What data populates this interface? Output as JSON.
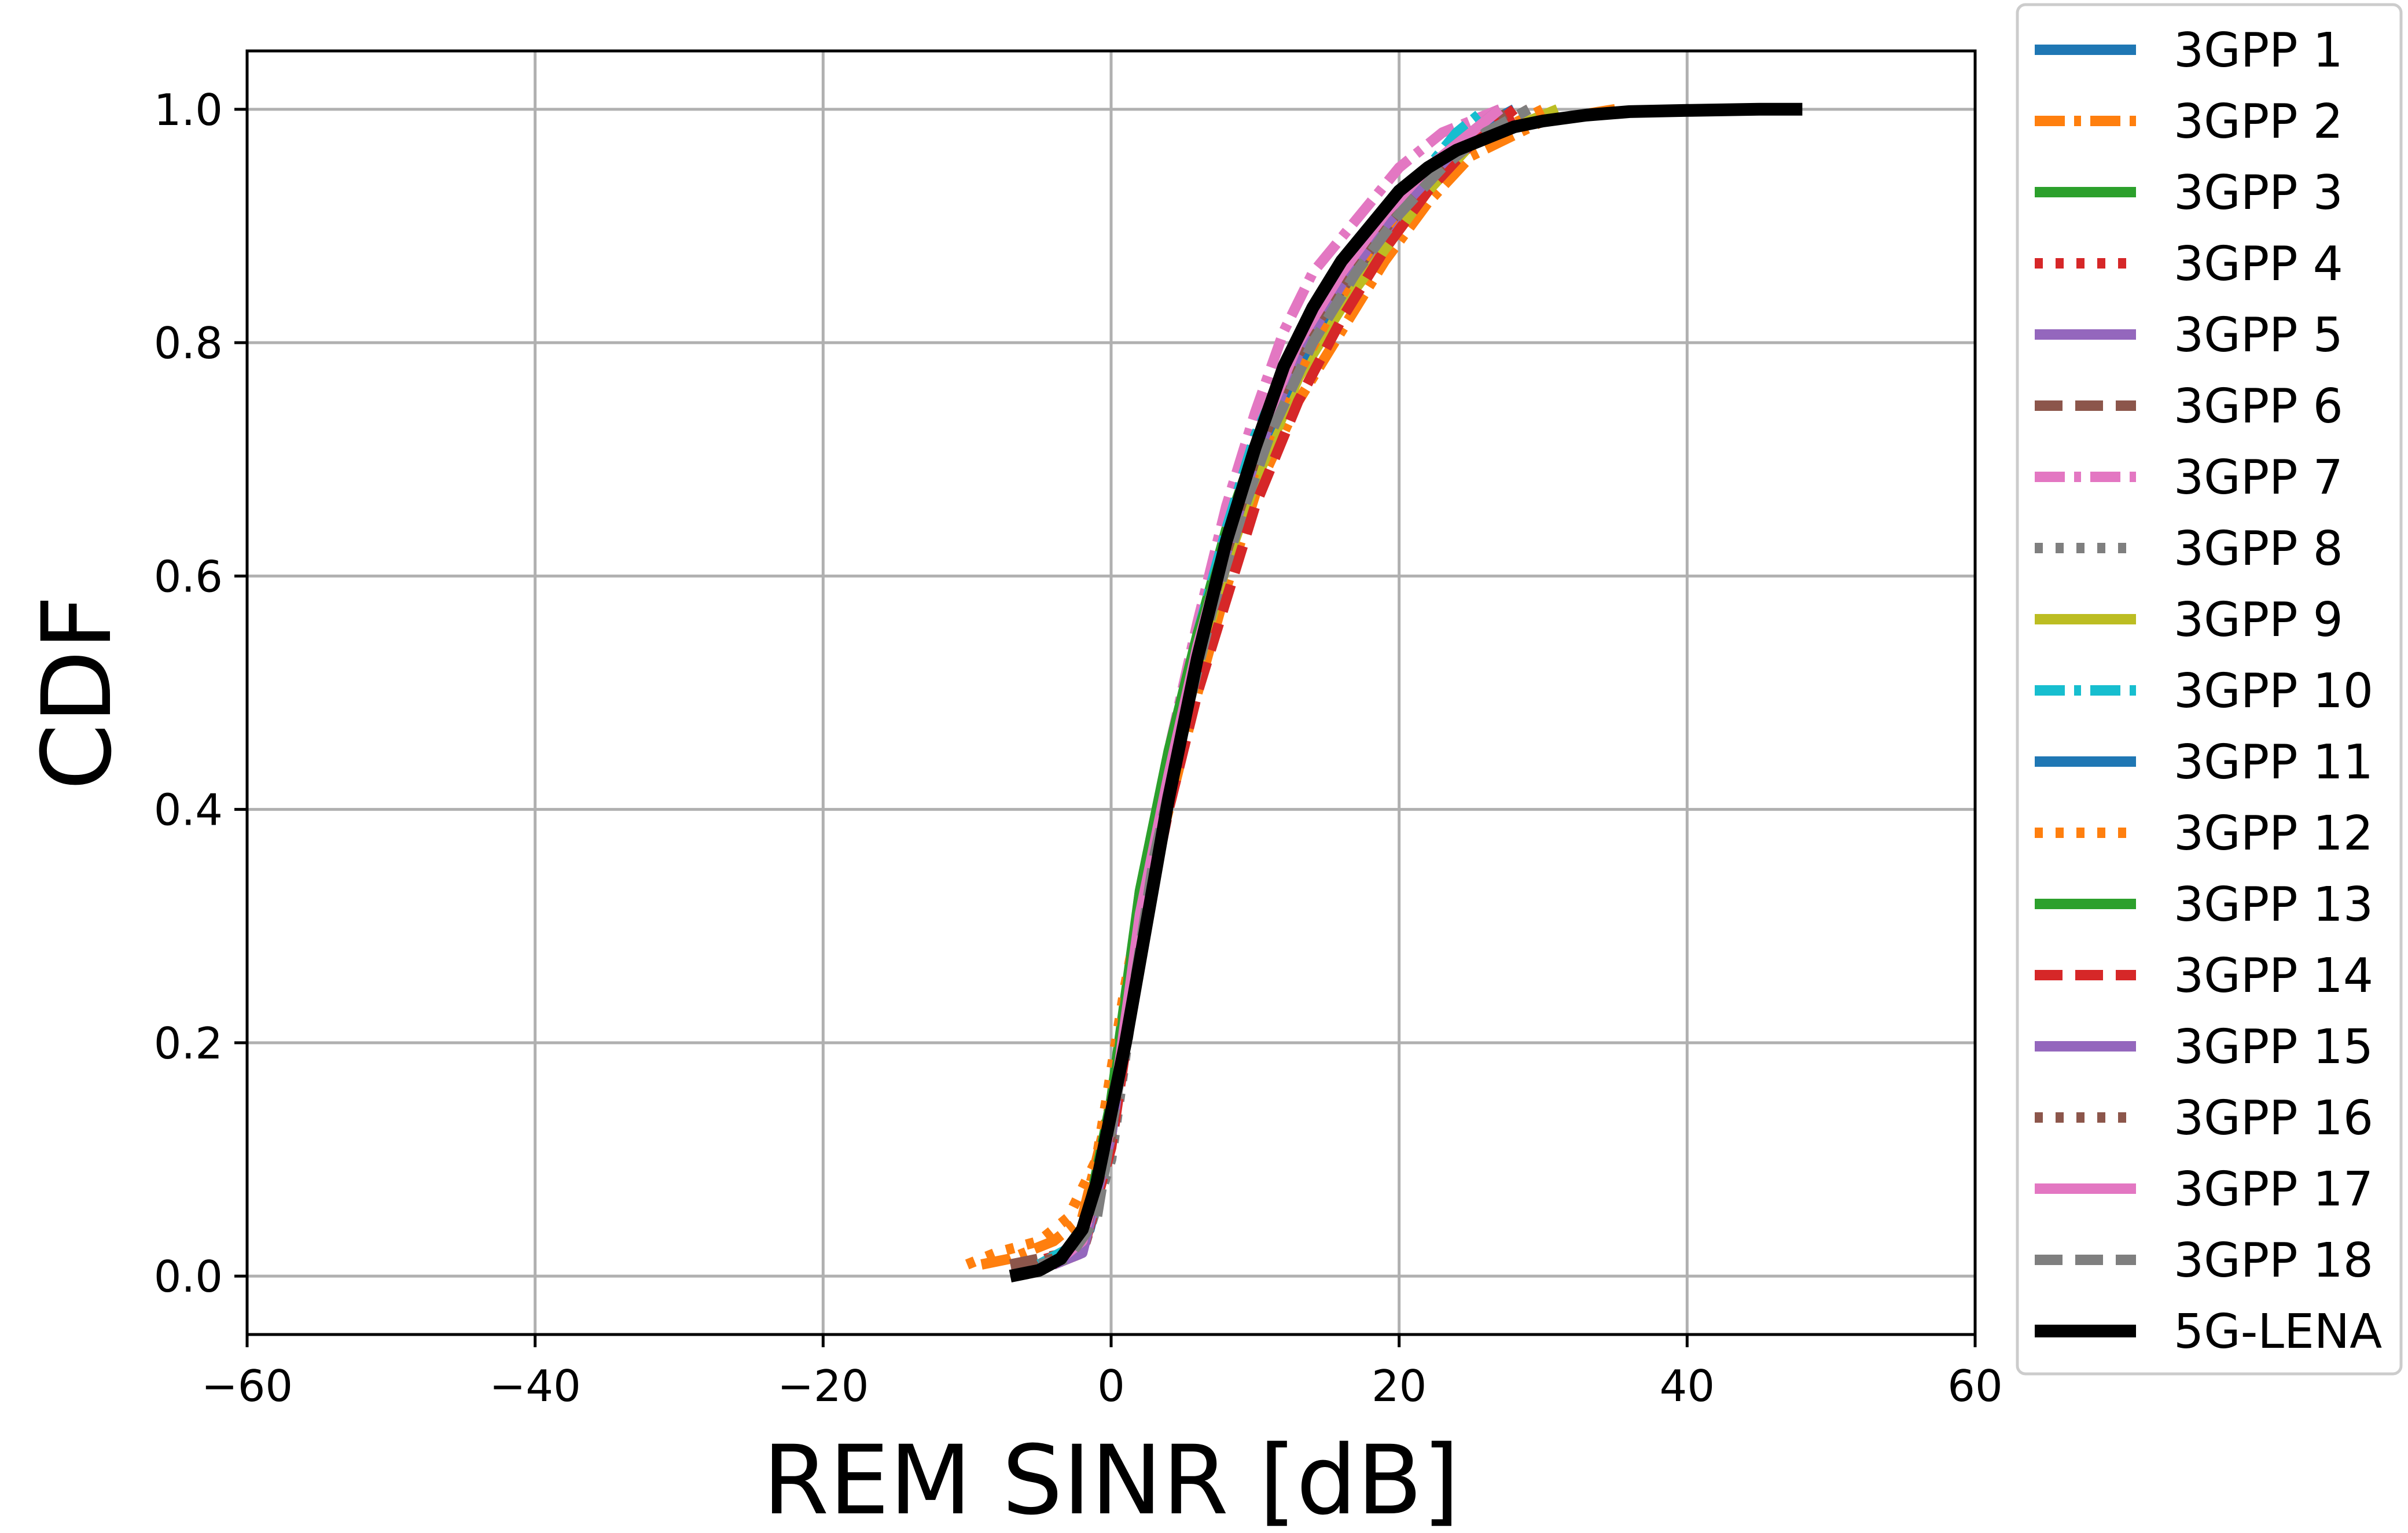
{
  "chart_data": {
    "type": "line",
    "title": "",
    "xlabel": "REM SINR [dB]",
    "ylabel": "CDF",
    "xlim": [
      -60,
      60
    ],
    "ylim": [
      -0.05,
      1.05
    ],
    "xticks": [
      -60,
      -40,
      -20,
      0,
      20,
      40,
      60
    ],
    "xtick_labels": [
      "−60",
      "−40",
      "−20",
      "0",
      "20",
      "40",
      "60"
    ],
    "yticks": [
      0.0,
      0.2,
      0.4,
      0.6,
      0.8,
      1.0
    ],
    "ytick_labels": [
      "0.0",
      "0.2",
      "0.4",
      "0.6",
      "0.8",
      "1.0"
    ],
    "grid": true,
    "legend_position": "outside-right",
    "series": [
      {
        "name": "3GPP 1",
        "color": "#1f77b4",
        "dash": "solid",
        "x": [
          -5,
          -3,
          -1.5,
          0,
          2,
          4,
          6,
          8,
          10,
          13,
          16,
          19,
          22,
          25,
          28
        ],
        "y": [
          0.01,
          0.02,
          0.04,
          0.12,
          0.3,
          0.43,
          0.53,
          0.62,
          0.7,
          0.79,
          0.85,
          0.9,
          0.94,
          0.98,
          1.0
        ]
      },
      {
        "name": "3GPP 2",
        "color": "#ff7f0e",
        "dash": "dashdot",
        "x": [
          -9,
          -7,
          -4,
          -2,
          0,
          2,
          4,
          6,
          8,
          10,
          13,
          16,
          19,
          22,
          25,
          30,
          35
        ],
        "y": [
          0.01,
          0.015,
          0.03,
          0.05,
          0.15,
          0.3,
          0.4,
          0.5,
          0.59,
          0.67,
          0.75,
          0.81,
          0.87,
          0.92,
          0.96,
          0.99,
          1.0
        ]
      },
      {
        "name": "3GPP 3",
        "color": "#2ca02c",
        "dash": "solid",
        "x": [
          -4,
          -2,
          0,
          2,
          4,
          6,
          8,
          10,
          13,
          16,
          19,
          22,
          25,
          27
        ],
        "y": [
          0.01,
          0.03,
          0.15,
          0.33,
          0.45,
          0.55,
          0.64,
          0.71,
          0.79,
          0.85,
          0.9,
          0.94,
          0.98,
          1.0
        ]
      },
      {
        "name": "3GPP 4",
        "color": "#d62728",
        "dash": "dotted",
        "x": [
          -6,
          -3,
          -1,
          1,
          3,
          5,
          7,
          9,
          11,
          14,
          17,
          20,
          23,
          26,
          29
        ],
        "y": [
          0.01,
          0.02,
          0.06,
          0.2,
          0.37,
          0.48,
          0.57,
          0.65,
          0.72,
          0.8,
          0.86,
          0.91,
          0.95,
          0.98,
          1.0
        ]
      },
      {
        "name": "3GPP 5",
        "color": "#9467bd",
        "dash": "solid",
        "x": [
          -5,
          -2,
          0,
          2,
          4,
          6,
          8,
          10,
          13,
          16,
          19,
          22,
          25,
          28
        ],
        "y": [
          0.01,
          0.03,
          0.12,
          0.3,
          0.42,
          0.52,
          0.61,
          0.69,
          0.78,
          0.84,
          0.89,
          0.94,
          0.98,
          1.0
        ]
      },
      {
        "name": "3GPP 6",
        "color": "#8c564b",
        "dash": "dashed",
        "x": [
          -7,
          -5,
          -3,
          -1,
          1,
          3,
          5,
          7,
          9,
          12,
          15,
          18,
          21,
          24,
          27
        ],
        "y": [
          0.01,
          0.015,
          0.02,
          0.06,
          0.2,
          0.36,
          0.47,
          0.57,
          0.65,
          0.75,
          0.82,
          0.88,
          0.93,
          0.97,
          1.0
        ]
      },
      {
        "name": "3GPP 7",
        "color": "#e377c2",
        "dash": "dashdot",
        "x": [
          -5,
          -2,
          0,
          2,
          4,
          6,
          8,
          10,
          12,
          14,
          16,
          18,
          20,
          23,
          27
        ],
        "y": [
          0.01,
          0.03,
          0.14,
          0.32,
          0.45,
          0.56,
          0.66,
          0.74,
          0.81,
          0.86,
          0.89,
          0.92,
          0.95,
          0.98,
          1.0
        ]
      },
      {
        "name": "3GPP 8",
        "color": "#7f7f7f",
        "dash": "dotted",
        "x": [
          -4,
          -2,
          0,
          2,
          4,
          6,
          8,
          10,
          13,
          16,
          19,
          22,
          25,
          28
        ],
        "y": [
          0.01,
          0.02,
          0.1,
          0.28,
          0.41,
          0.52,
          0.61,
          0.69,
          0.78,
          0.84,
          0.9,
          0.94,
          0.98,
          1.0
        ]
      },
      {
        "name": "3GPP 9",
        "color": "#bcbd22",
        "dash": "solid",
        "x": [
          -4,
          -2,
          0,
          2,
          4,
          6,
          8,
          10,
          13,
          16,
          19,
          22,
          25,
          31
        ],
        "y": [
          0.01,
          0.03,
          0.12,
          0.3,
          0.42,
          0.52,
          0.61,
          0.68,
          0.77,
          0.83,
          0.88,
          0.93,
          0.97,
          1.0
        ]
      },
      {
        "name": "3GPP 10",
        "color": "#17becf",
        "dash": "dashdot",
        "x": [
          -5,
          -2,
          0,
          2,
          4,
          6,
          8,
          10,
          13,
          16,
          19,
          22,
          24,
          26
        ],
        "y": [
          0.01,
          0.03,
          0.14,
          0.32,
          0.44,
          0.55,
          0.64,
          0.72,
          0.8,
          0.86,
          0.91,
          0.95,
          0.98,
          1.0
        ]
      },
      {
        "name": "3GPP 11",
        "color": "#1f77b4",
        "dash": "solid",
        "x": [
          -4,
          -2,
          0,
          2,
          4,
          6,
          8,
          10,
          13,
          16,
          19,
          22,
          25,
          28
        ],
        "y": [
          0.01,
          0.03,
          0.13,
          0.31,
          0.43,
          0.53,
          0.62,
          0.7,
          0.78,
          0.85,
          0.9,
          0.94,
          0.98,
          1.0
        ]
      },
      {
        "name": "3GPP 12",
        "color": "#ff7f0e",
        "dash": "dotted",
        "x": [
          -10,
          -8,
          -5,
          -3,
          -1,
          1,
          3,
          5,
          7,
          9,
          12,
          15,
          18,
          21,
          25,
          30
        ],
        "y": [
          0.01,
          0.02,
          0.03,
          0.05,
          0.1,
          0.25,
          0.38,
          0.49,
          0.58,
          0.66,
          0.75,
          0.82,
          0.88,
          0.93,
          0.97,
          1.0
        ]
      },
      {
        "name": "3GPP 13",
        "color": "#2ca02c",
        "dash": "solid",
        "x": [
          -4,
          -2,
          0,
          2,
          4,
          6,
          8,
          10,
          13,
          16,
          19,
          22,
          25,
          27
        ],
        "y": [
          0.01,
          0.03,
          0.14,
          0.33,
          0.45,
          0.55,
          0.63,
          0.71,
          0.8,
          0.86,
          0.91,
          0.95,
          0.98,
          1.0
        ]
      },
      {
        "name": "3GPP 14",
        "color": "#d62728",
        "dash": "dashed",
        "x": [
          -4,
          -2,
          0,
          2,
          4,
          6,
          8,
          10,
          13,
          16,
          19,
          22,
          25,
          28
        ],
        "y": [
          0.01,
          0.02,
          0.11,
          0.28,
          0.4,
          0.5,
          0.58,
          0.66,
          0.75,
          0.82,
          0.88,
          0.93,
          0.97,
          1.0
        ]
      },
      {
        "name": "3GPP 15",
        "color": "#9467bd",
        "dash": "solid",
        "x": [
          -4,
          -2,
          0,
          2,
          4,
          6,
          8,
          10,
          13,
          16,
          19,
          22,
          25,
          27
        ],
        "y": [
          0.01,
          0.02,
          0.12,
          0.3,
          0.42,
          0.53,
          0.62,
          0.7,
          0.79,
          0.85,
          0.9,
          0.94,
          0.98,
          1.0
        ]
      },
      {
        "name": "3GPP 16",
        "color": "#8c564b",
        "dash": "dotted",
        "x": [
          -6,
          -4,
          -2,
          0,
          2,
          4,
          6,
          8,
          10,
          13,
          16,
          19,
          22,
          25,
          28
        ],
        "y": [
          0.01,
          0.015,
          0.03,
          0.12,
          0.3,
          0.42,
          0.53,
          0.62,
          0.7,
          0.79,
          0.85,
          0.9,
          0.94,
          0.98,
          1.0
        ]
      },
      {
        "name": "3GPP 17",
        "color": "#e377c2",
        "dash": "solid",
        "x": [
          -4,
          -2,
          0,
          2,
          4,
          6,
          8,
          10,
          13,
          16,
          19,
          22,
          25,
          27
        ],
        "y": [
          0.01,
          0.03,
          0.13,
          0.31,
          0.43,
          0.54,
          0.63,
          0.71,
          0.8,
          0.86,
          0.91,
          0.95,
          0.98,
          1.0
        ]
      },
      {
        "name": "3GPP 18",
        "color": "#7f7f7f",
        "dash": "dashed",
        "x": [
          -5,
          -3,
          -1,
          1,
          3,
          5,
          7,
          9,
          11,
          14,
          17,
          20,
          23,
          26,
          29
        ],
        "y": [
          0.01,
          0.015,
          0.05,
          0.2,
          0.36,
          0.47,
          0.57,
          0.65,
          0.72,
          0.8,
          0.86,
          0.91,
          0.95,
          0.98,
          1.0
        ]
      },
      {
        "name": "5G-LENA",
        "color": "#000000",
        "dash": "solid",
        "x": [
          -7,
          -5,
          -3.5,
          -2,
          -1,
          0,
          1,
          2,
          3,
          4,
          5,
          6,
          7,
          8,
          9,
          10,
          12,
          14,
          16,
          18,
          20,
          22,
          24,
          26,
          28,
          30,
          33,
          36,
          40,
          45,
          48
        ],
        "y": [
          0.0,
          0.005,
          0.015,
          0.04,
          0.08,
          0.14,
          0.2,
          0.27,
          0.34,
          0.41,
          0.47,
          0.53,
          0.58,
          0.63,
          0.67,
          0.71,
          0.78,
          0.83,
          0.87,
          0.9,
          0.93,
          0.95,
          0.965,
          0.975,
          0.985,
          0.99,
          0.995,
          0.998,
          0.999,
          1.0,
          1.0
        ]
      }
    ]
  }
}
